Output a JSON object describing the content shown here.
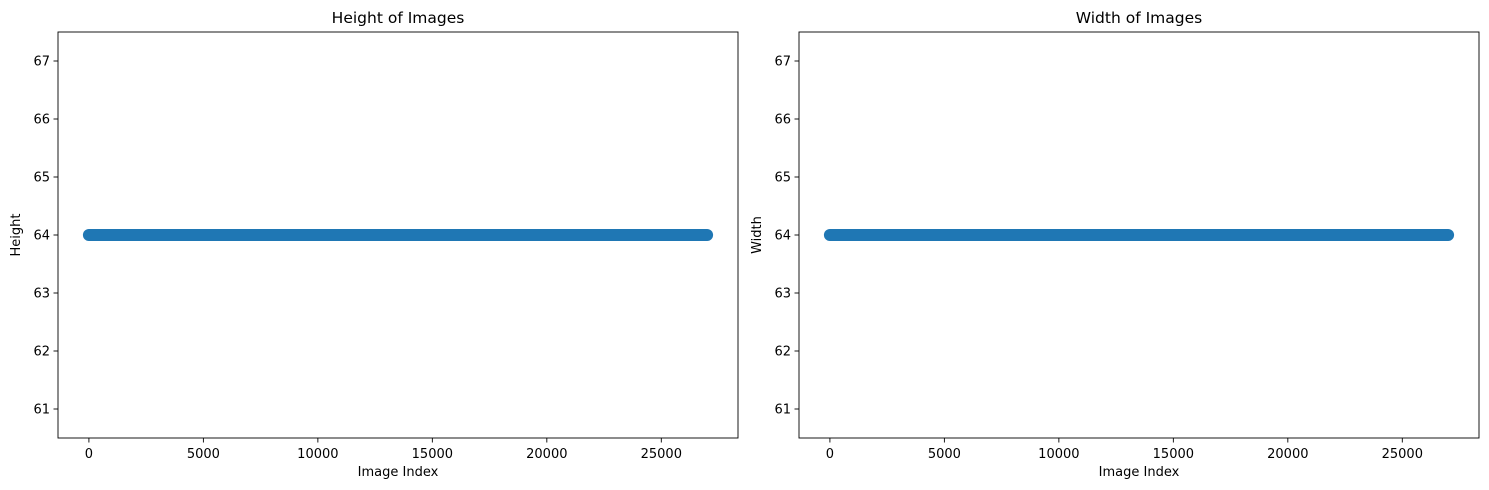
{
  "chart_data": [
    {
      "type": "scatter",
      "title": "Height of Images",
      "xlabel": "Image Index",
      "ylabel": "Height",
      "xlim": [
        -1350,
        28350
      ],
      "ylim": [
        60.5,
        67.5
      ],
      "xticks": [
        0,
        5000,
        10000,
        15000,
        20000,
        25000
      ],
      "yticks": [
        61,
        62,
        63,
        64,
        65,
        66,
        67
      ],
      "series": [
        {
          "x_range": [
            0,
            27000
          ],
          "y": 64,
          "color": "#1f77b4"
        }
      ],
      "grid": false
    },
    {
      "type": "scatter",
      "title": "Width of Images",
      "xlabel": "Image Index",
      "ylabel": "Width",
      "xlim": [
        -1350,
        28350
      ],
      "ylim": [
        60.5,
        67.5
      ],
      "xticks": [
        0,
        5000,
        10000,
        15000,
        20000,
        25000
      ],
      "yticks": [
        61,
        62,
        63,
        64,
        65,
        66,
        67
      ],
      "series": [
        {
          "x_range": [
            0,
            27000
          ],
          "y": 64,
          "color": "#1f77b4"
        }
      ],
      "grid": false
    }
  ]
}
